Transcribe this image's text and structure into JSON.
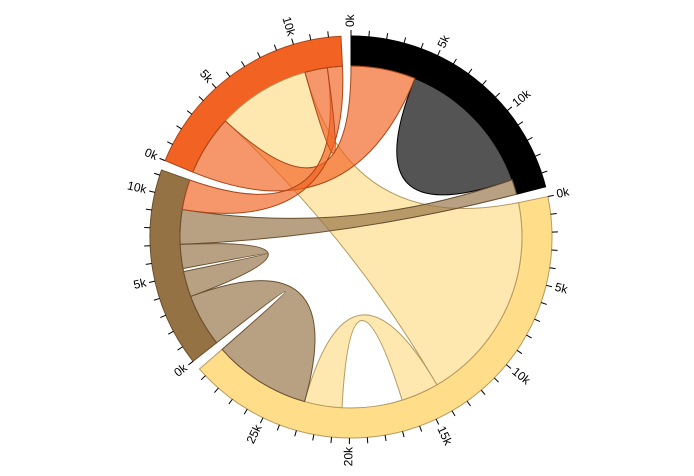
{
  "figure": {
    "kind": "chord-diagram",
    "background": "#ffffff"
  },
  "chart_data": {
    "type": "chord",
    "title": "",
    "legend": "none",
    "tick_step": 1000,
    "label_step": 5000,
    "label_suffix": "k",
    "tick_labels_shown": [
      "0k",
      "5k",
      "10k",
      "0k",
      "5k",
      "10k",
      "15k",
      "20k",
      "25k",
      "0k",
      "5k",
      "10k",
      "0k",
      "5k",
      "10k"
    ],
    "pad_radians": 0.05,
    "chord_fill_opacity": 0.67,
    "group_order": [
      "black",
      "yellow",
      "brown",
      "orange"
    ],
    "matrix_reference": {
      "row_order": [
        "black",
        "yellow",
        "brown",
        "orange"
      ],
      "rows": {
        "black": {
          "black": 9500,
          "yellow": 0,
          "brown": 1000,
          "orange": 4300
        },
        "yellow": {
          "black": 0,
          "yellow": 9000,
          "brown": 6500,
          "orange": 14000
        },
        "brown": {
          "black": 2300,
          "yellow": 3500,
          "brown": 3500,
          "orange": 2000
        },
        "orange": {
          "black": 4000,
          "yellow": 6200,
          "brown": 1000,
          "orange": 1500
        }
      },
      "group_totals": {
        "black": 14800,
        "yellow": 29500,
        "brown": 11300,
        "orange": 12700
      }
    },
    "groups": [
      {
        "name": "black",
        "color": "#000000",
        "total": 14800,
        "segments": [
          {
            "key": "black-orange",
            "value": 4300
          },
          {
            "key": "black-self",
            "value": 9500
          },
          {
            "key": "black-brown",
            "value": 1000
          }
        ]
      },
      {
        "name": "yellow",
        "color": "#FFDD89",
        "total": 29500,
        "segments": [
          {
            "key": "yellow-orange",
            "value": 14000
          },
          {
            "key": "yellow-self-a",
            "value": 2500
          },
          {
            "key": "yellow-self-gap",
            "value": 4000
          },
          {
            "key": "yellow-self-b",
            "value": 2500
          },
          {
            "key": "yellow-brown",
            "value": 6500
          }
        ]
      },
      {
        "name": "brown",
        "color": "#957244",
        "total": 11300,
        "segments": [
          {
            "key": "brown-yellow",
            "value": 3500
          },
          {
            "key": "brown-self-b",
            "value": 1700
          },
          {
            "key": "brown-self-gap",
            "value": 200
          },
          {
            "key": "brown-self-a",
            "value": 1600
          },
          {
            "key": "brown-black",
            "value": 2300
          },
          {
            "key": "brown-orange",
            "value": 2000
          }
        ]
      },
      {
        "name": "orange",
        "color": "#F26223",
        "total": 12700,
        "segments": [
          {
            "key": "orange-black",
            "value": 4000
          },
          {
            "key": "orange-yellow",
            "value": 6200
          },
          {
            "key": "orange-self",
            "value": 1500
          },
          {
            "key": "orange-brown",
            "value": 1000
          }
        ]
      }
    ],
    "chords": [
      {
        "name": "flow-yellow-orange",
        "from": "yellow-orange",
        "to": "orange-yellow",
        "color": "#FFDD89"
      },
      {
        "name": "flow-yellow-self",
        "from": "yellow-self-a",
        "to": "yellow-self-b",
        "color": "#FFDD89"
      },
      {
        "name": "flow-black-self",
        "from": "black-self",
        "petal": true,
        "color": "#000000"
      },
      {
        "name": "flow-black-orange",
        "from": "black-orange",
        "to": "orange-black",
        "color": "#F26223"
      },
      {
        "name": "flow-black-brown",
        "from": "black-brown",
        "to": "brown-black",
        "color": "#957244"
      },
      {
        "name": "flow-yellow-brown",
        "from": "yellow-brown",
        "to": "brown-yellow",
        "color": "#957244"
      },
      {
        "name": "flow-brown-self",
        "from": "brown-self-a",
        "to": "brown-self-b",
        "color": "#957244"
      },
      {
        "name": "flow-brown-orange",
        "from": "brown-orange",
        "to": "orange-brown",
        "color": "#F26223"
      },
      {
        "name": "flow-orange-self",
        "from": "orange-self",
        "petal": true,
        "color": "#F26223"
      }
    ]
  }
}
